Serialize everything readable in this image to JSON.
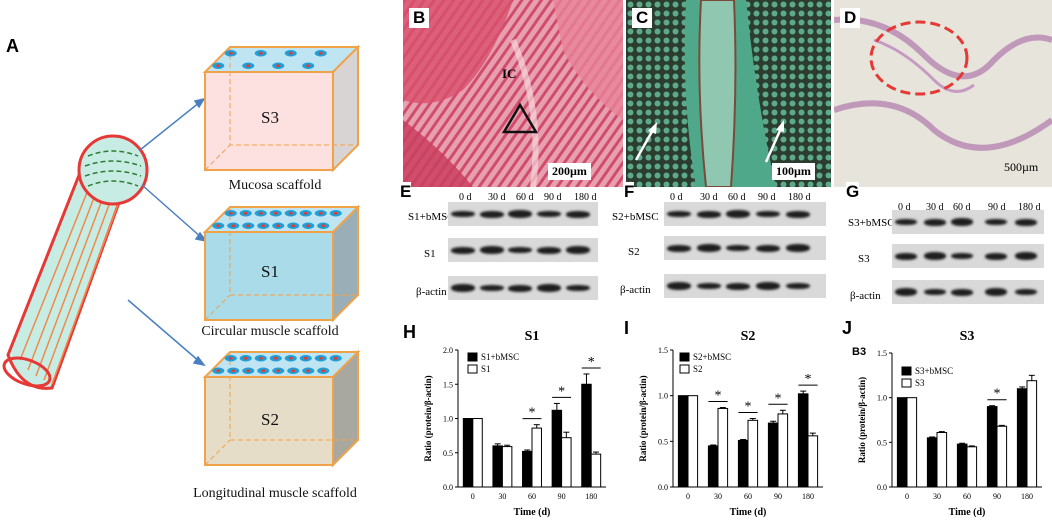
{
  "panel_a": {
    "letter": "A",
    "scaffolds": [
      {
        "code": "S3",
        "label": "Mucosa scaffold",
        "color": "#fde0e0"
      },
      {
        "code": "S1",
        "label": "Circular muscle scaffold",
        "color": "#a9dbe8"
      },
      {
        "code": "S2",
        "label": "Longitudinal muscle scaffold",
        "color": "#e6ddc8"
      }
    ]
  },
  "photos": {
    "b": {
      "letter": "B",
      "annotation": "IC",
      "scale": "200µm"
    },
    "c": {
      "letter": "C",
      "scale": "100µm"
    },
    "d": {
      "letter": "D",
      "scale": "500µm"
    }
  },
  "blots": {
    "days": [
      "0 d",
      "30 d",
      "60 d",
      "90 d",
      "180 d"
    ],
    "e": {
      "letter": "E",
      "rows": [
        "S1+bMSC",
        "S1",
        "β-actin"
      ]
    },
    "f": {
      "letter": "F",
      "rows": [
        "S2+bMSC",
        "S2",
        "β-actin"
      ]
    },
    "g": {
      "letter": "G",
      "rows": [
        "S3+bMSC",
        "S3",
        "β-actin"
      ]
    }
  },
  "chart_data": [
    {
      "type": "bar",
      "panel": "H",
      "title": "S1",
      "xlabel": "Time (d)",
      "ylabel": "Ratio (protein/β-actin)",
      "categories": [
        "0",
        "30",
        "60",
        "90",
        "180"
      ],
      "ylim": [
        0,
        2.0
      ],
      "yticks": [
        "0.0",
        "0.5",
        "1.0",
        "1.5",
        "2.0"
      ],
      "series": [
        {
          "name": "S1+bMSC",
          "values": [
            1.0,
            0.6,
            0.52,
            1.12,
            1.5
          ],
          "errors": [
            0,
            0.03,
            0.02,
            0.1,
            0.15
          ]
        },
        {
          "name": "S1",
          "values": [
            1.0,
            0.59,
            0.86,
            0.72,
            0.48
          ],
          "errors": [
            0,
            0.02,
            0.05,
            0.08,
            0.03
          ]
        }
      ],
      "significance": [
        "60",
        "90",
        "180"
      ]
    },
    {
      "type": "bar",
      "panel": "I",
      "title": "S2",
      "xlabel": "Time (d)",
      "ylabel": "Ratio (protein/β-actin)",
      "categories": [
        "0",
        "30",
        "60",
        "90",
        "180"
      ],
      "ylim": [
        0,
        1.5
      ],
      "yticks": [
        "0.0",
        "0.5",
        "1.0",
        "1.5"
      ],
      "series": [
        {
          "name": "S2+bMSC",
          "values": [
            1.0,
            0.45,
            0.51,
            0.7,
            1.02
          ],
          "errors": [
            0,
            0.01,
            0.01,
            0.02,
            0.03
          ]
        },
        {
          "name": "S2",
          "values": [
            1.0,
            0.86,
            0.73,
            0.8,
            0.56
          ],
          "errors": [
            0,
            0.01,
            0.02,
            0.04,
            0.03
          ]
        }
      ],
      "significance": [
        "30",
        "60",
        "90",
        "180"
      ]
    },
    {
      "type": "bar",
      "panel": "J",
      "title": "S3",
      "subtitle": "B3",
      "xlabel": "Time (d)",
      "ylabel": "Ratio (protein/β-actin)",
      "categories": [
        "0",
        "30",
        "60",
        "90",
        "180"
      ],
      "ylim": [
        0,
        1.5
      ],
      "yticks": [
        "0.0",
        "0.5",
        "1.0",
        "1.5"
      ],
      "series": [
        {
          "name": "S3+bMSC",
          "values": [
            1.0,
            0.55,
            0.48,
            0.9,
            1.1
          ],
          "errors": [
            0,
            0.01,
            0.01,
            0.01,
            0.02
          ]
        },
        {
          "name": "S3",
          "values": [
            1.0,
            0.61,
            0.45,
            0.68,
            1.19
          ],
          "errors": [
            0,
            0.01,
            0.01,
            0.01,
            0.06
          ]
        }
      ],
      "significance": [
        "90"
      ]
    }
  ]
}
